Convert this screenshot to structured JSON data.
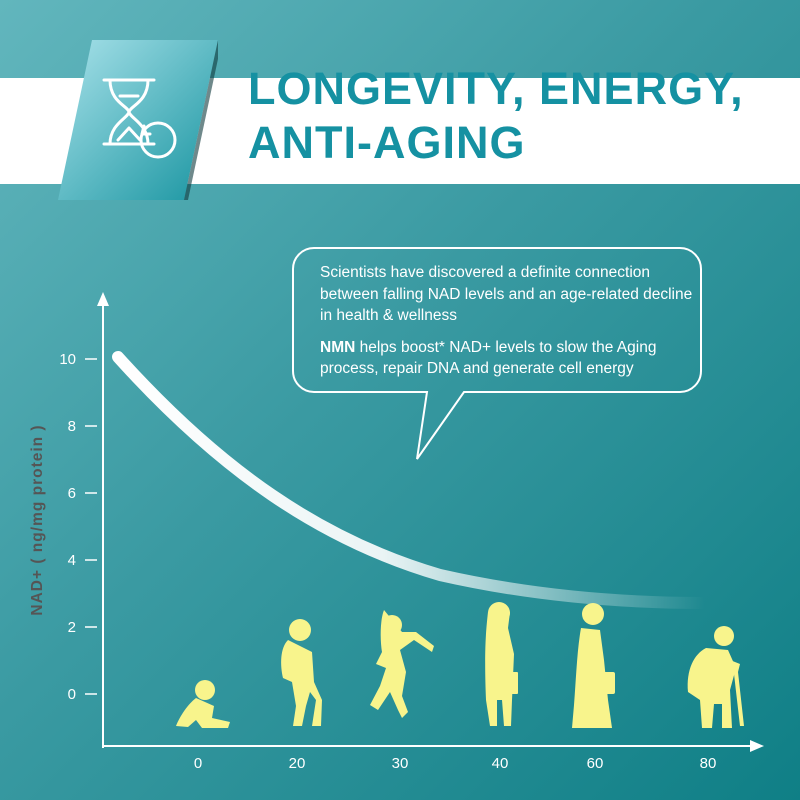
{
  "header": {
    "title_line1": "LONGEVITY, ENERGY,",
    "title_line2": "ANTI-AGING",
    "icon": "hourglass-refresh-icon"
  },
  "callout": {
    "paragraph1": "Scientists have discovered a definite connection between falling NAD levels and an age-related decline in health & wellness",
    "paragraph2_bold": "NMN",
    "paragraph2_rest": " helps boost* NAD+ levels to slow the Aging process, repair DNA and generate cell energy"
  },
  "colors": {
    "teal_dark": "#0f7f86",
    "teal_light": "#62b6bd",
    "title": "#1591a2",
    "silhouette": "#f8f48c"
  },
  "chart_data": {
    "type": "line",
    "xlabel": "",
    "ylabel": "NAD+ ( ng/mg protein )",
    "x_ticks": [
      "0",
      "20",
      "30",
      "40",
      "60",
      "80"
    ],
    "y_ticks": [
      "0",
      "2",
      "4",
      "6",
      "8",
      "10"
    ],
    "ylim": [
      0,
      10
    ],
    "curve": [
      {
        "x": "before 0",
        "y": 10.0
      },
      {
        "x": "0",
        "y": 8.0
      },
      {
        "x": "20",
        "y": 6.0
      },
      {
        "x": "30",
        "y": 4.9
      },
      {
        "x": "40",
        "y": 4.0
      },
      {
        "x": "60",
        "y": 3.0
      },
      {
        "x": "80",
        "y": 2.7
      }
    ],
    "figures": [
      "baby",
      "child",
      "young-woman",
      "adult-woman",
      "middle-aged-woman",
      "elderly-person"
    ]
  }
}
